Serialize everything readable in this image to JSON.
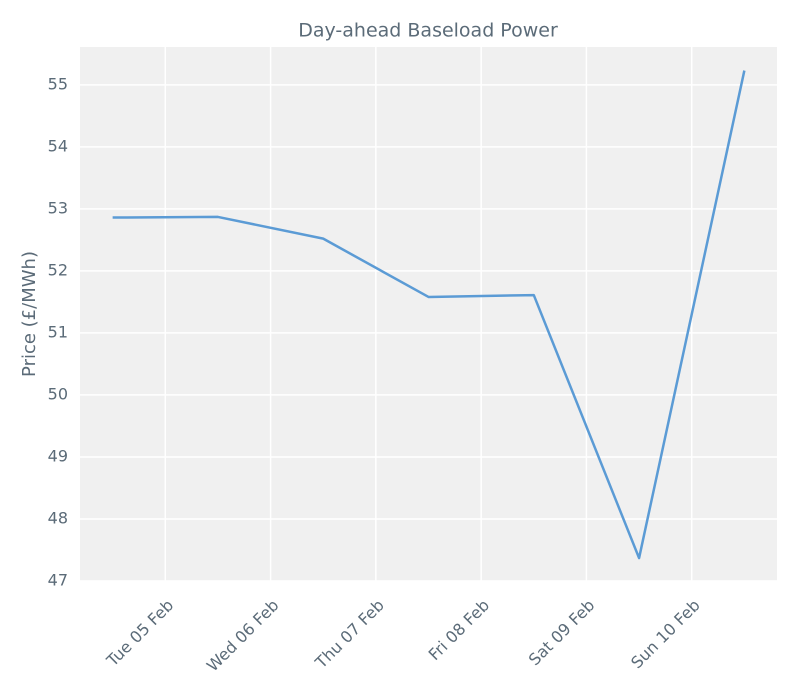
{
  "chart_data": {
    "type": "line",
    "title": "Day-ahead Baseload Power",
    "y_label": "Price (£/MWh)",
    "x": [
      4.5,
      5.5,
      6.5,
      7.5,
      8.5,
      9.5,
      10.5
    ],
    "series": [
      {
        "name": "Day-ahead Baseload Power",
        "color": "#5b9bd5",
        "values": [
          52.86,
          52.87,
          52.52,
          51.58,
          51.61,
          47.37,
          55.23
        ]
      }
    ],
    "xlim": [
      4.19,
      10.81
    ],
    "xticks": [
      {
        "value": 5,
        "label": "Tue 05 Feb"
      },
      {
        "value": 6,
        "label": "Wed 06 Feb"
      },
      {
        "value": 7,
        "label": "Thu 07 Feb"
      },
      {
        "value": 8,
        "label": "Fri 08 Feb"
      },
      {
        "value": 9,
        "label": "Sat 09 Feb"
      },
      {
        "value": 10,
        "label": "Sun 10 Feb"
      }
    ],
    "ylim": [
      47,
      55.61
    ],
    "yticks": [
      47,
      48,
      49,
      50,
      51,
      52,
      53,
      54,
      55
    ],
    "grid": true
  }
}
